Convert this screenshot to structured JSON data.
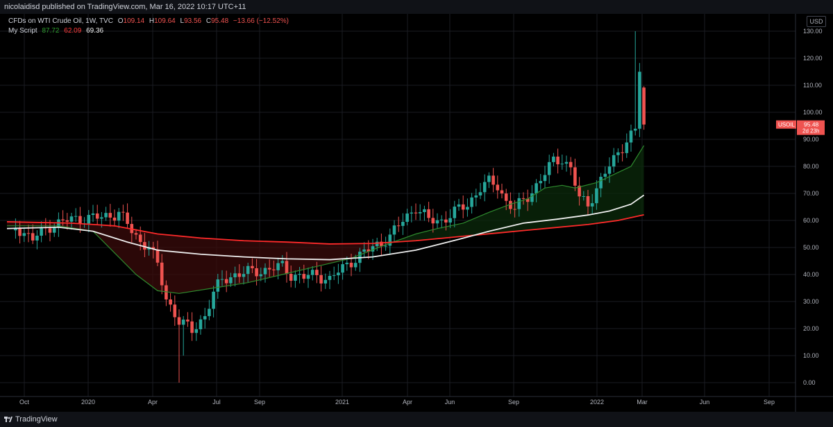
{
  "header": {
    "published": "nicolaidisd published on TradingView.com, Mar 16, 2022 10:17 UTC+11"
  },
  "legend": {
    "symbol": "CFDs on WTI Crude Oil, 1W, TVC",
    "open_label": "O",
    "open": "109.14",
    "high_label": "H",
    "high": "109.64",
    "low_label": "L",
    "low": "93.56",
    "close_label": "C",
    "close": "95.48",
    "change": "−13.66 (−12.52%)",
    "script_name": "My Script",
    "script_values": [
      "87.72",
      "62.09",
      "69.36"
    ]
  },
  "price_axis": {
    "unit": "USD"
  },
  "price_tag": {
    "symbol": "USOIL",
    "price": "95.48",
    "countdown": "2d 23h"
  },
  "footer": {
    "brand": "TradingView"
  },
  "colors": {
    "up": "#26a69a",
    "down": "#ef5350",
    "fast_ma": "#2e8b2e",
    "slow_ma": "#ff2a2a",
    "mid_ma": "#f0f0f0",
    "grid": "#1a1c22"
  },
  "chart_data": {
    "type": "candlestick",
    "interval": "1W",
    "ylim": [
      0,
      130
    ],
    "yticks": [
      "130.00",
      "120.00",
      "110.00",
      "100.00",
      "90.00",
      "80.00",
      "70.00",
      "60.00",
      "50.00",
      "40.00",
      "30.00",
      "20.00",
      "10.00",
      "0.00"
    ],
    "xlabels": [
      "Oct",
      "2020",
      "Apr",
      "Jul",
      "Sep",
      "2021",
      "Apr",
      "Jun",
      "Sep",
      "2022",
      "Mar",
      "Jun",
      "Sep"
    ],
    "grid": true,
    "anchors": [
      {
        "i": 2,
        "v": 58
      },
      {
        "i": 6,
        "v": 53
      },
      {
        "i": 10,
        "v": 58
      },
      {
        "i": 14,
        "v": 60
      },
      {
        "i": 18,
        "v": 61
      },
      {
        "i": 22,
        "v": 61
      },
      {
        "i": 26,
        "v": 63
      },
      {
        "i": 29,
        "v": 56
      },
      {
        "i": 31,
        "v": 52
      },
      {
        "i": 33,
        "v": 51
      },
      {
        "i": 35,
        "v": 43
      },
      {
        "i": 37,
        "v": 31
      },
      {
        "i": 40,
        "v": 23
      },
      {
        "i": 43,
        "v": 19
      },
      {
        "i": 46,
        "v": 25
      },
      {
        "i": 48,
        "v": 33
      },
      {
        "i": 50,
        "v": 38
      },
      {
        "i": 53,
        "v": 40
      },
      {
        "i": 57,
        "v": 41
      },
      {
        "i": 61,
        "v": 42
      },
      {
        "i": 64,
        "v": 43
      },
      {
        "i": 66,
        "v": 40
      },
      {
        "i": 69,
        "v": 39
      },
      {
        "i": 72,
        "v": 40
      },
      {
        "i": 75,
        "v": 38
      },
      {
        "i": 77,
        "v": 41
      },
      {
        "i": 80,
        "v": 45
      },
      {
        "i": 83,
        "v": 48
      },
      {
        "i": 86,
        "v": 51
      },
      {
        "i": 89,
        "v": 54
      },
      {
        "i": 92,
        "v": 60
      },
      {
        "i": 95,
        "v": 65
      },
      {
        "i": 98,
        "v": 60
      },
      {
        "i": 101,
        "v": 60
      },
      {
        "i": 104,
        "v": 63
      },
      {
        "i": 107,
        "v": 66
      },
      {
        "i": 110,
        "v": 72
      },
      {
        "i": 112,
        "v": 74
      },
      {
        "i": 114,
        "v": 73
      },
      {
        "i": 116,
        "v": 67
      },
      {
        "i": 118,
        "v": 64
      },
      {
        "i": 121,
        "v": 69
      },
      {
        "i": 124,
        "v": 75
      },
      {
        "i": 127,
        "v": 82
      },
      {
        "i": 129,
        "v": 83
      },
      {
        "i": 131,
        "v": 79
      },
      {
        "i": 133,
        "v": 68
      },
      {
        "i": 135,
        "v": 66
      },
      {
        "i": 137,
        "v": 72
      },
      {
        "i": 140,
        "v": 80
      },
      {
        "i": 142,
        "v": 85
      },
      {
        "i": 144,
        "v": 90
      },
      {
        "i": 146,
        "v": 93
      },
      {
        "i": 147,
        "v": 115
      },
      {
        "i": 148,
        "v": 109.14
      }
    ],
    "last_candle": {
      "o": 109.14,
      "h": 109.64,
      "l": 93.56,
      "c": 95.48
    },
    "series": [
      {
        "name": "My Script (fast)",
        "color": "#2e8b2e",
        "points": [
          [
            0,
            58
          ],
          [
            12,
            58
          ],
          [
            20,
            56
          ],
          [
            25,
            48
          ],
          [
            30,
            40
          ],
          [
            35,
            34
          ],
          [
            40,
            33
          ],
          [
            48,
            35
          ],
          [
            56,
            37
          ],
          [
            64,
            40
          ],
          [
            72,
            43
          ],
          [
            80,
            46
          ],
          [
            88,
            51
          ],
          [
            95,
            55
          ],
          [
            100,
            57
          ],
          [
            106,
            59
          ],
          [
            112,
            63
          ],
          [
            117,
            66
          ],
          [
            121,
            68
          ],
          [
            125,
            72
          ],
          [
            129,
            73
          ],
          [
            132,
            72
          ],
          [
            137,
            74
          ],
          [
            141,
            77
          ],
          [
            145,
            80
          ],
          [
            148,
            87.72
          ]
        ]
      },
      {
        "name": "My Script (slow)",
        "color": "#ff2a2a",
        "points": [
          [
            0,
            59.5
          ],
          [
            15,
            59
          ],
          [
            25,
            58
          ],
          [
            35,
            55
          ],
          [
            45,
            53.5
          ],
          [
            55,
            52.5
          ],
          [
            65,
            52
          ],
          [
            75,
            51.3
          ],
          [
            85,
            51.5
          ],
          [
            95,
            52.5
          ],
          [
            105,
            54
          ],
          [
            115,
            55.5
          ],
          [
            125,
            57
          ],
          [
            135,
            58.5
          ],
          [
            142,
            60
          ],
          [
            148,
            62.09
          ]
        ]
      },
      {
        "name": "My Script (mid)",
        "color": "#f0f0f0",
        "points": [
          [
            0,
            57
          ],
          [
            12,
            57.5
          ],
          [
            20,
            56
          ],
          [
            28,
            52
          ],
          [
            35,
            49
          ],
          [
            45,
            47.5
          ],
          [
            55,
            46.5
          ],
          [
            65,
            45.8
          ],
          [
            75,
            45.5
          ],
          [
            85,
            46.5
          ],
          [
            95,
            49
          ],
          [
            105,
            53
          ],
          [
            112,
            56
          ],
          [
            120,
            59
          ],
          [
            128,
            60.5
          ],
          [
            135,
            62
          ],
          [
            140,
            63.5
          ],
          [
            145,
            66
          ],
          [
            148,
            69.36
          ]
        ]
      }
    ]
  }
}
